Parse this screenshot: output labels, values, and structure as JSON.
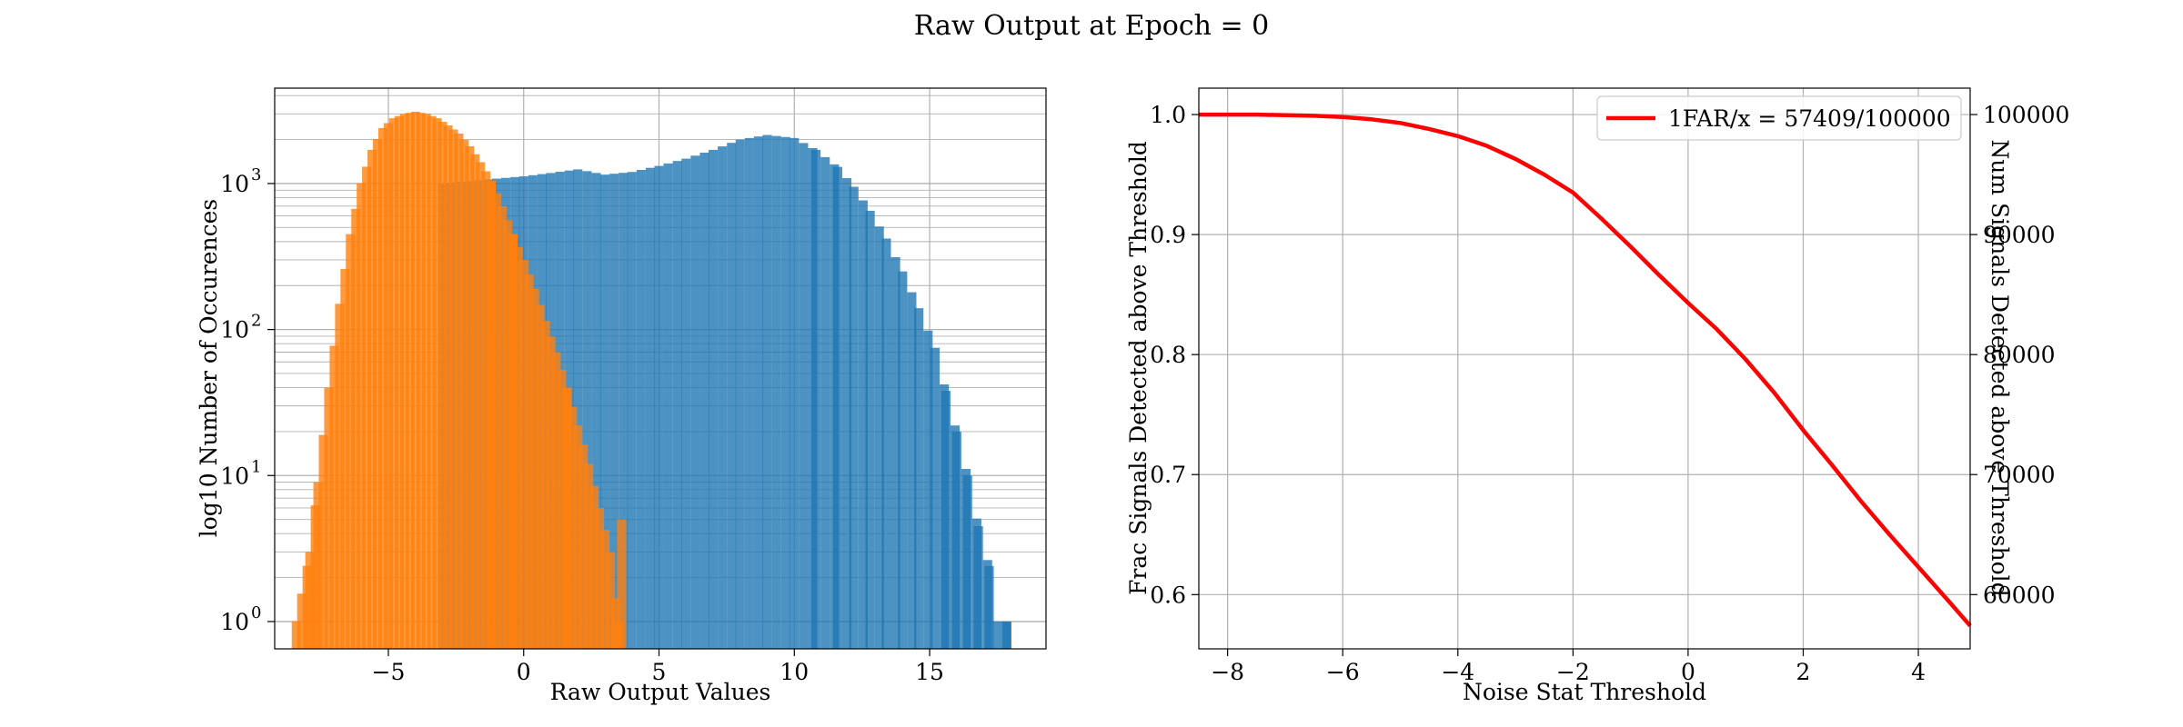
{
  "figure": {
    "suptitle": "Raw Output at Epoch = 0"
  },
  "colors": {
    "signal": "#1f77b4",
    "noise": "#ff7f0e",
    "curve": "#ff0000",
    "grid": "#b0b0b0"
  },
  "chart_data": [
    {
      "type": "histogram",
      "title": "",
      "xlabel": "Raw Output Values",
      "ylabel": "log10 Number of Occurences",
      "yscale": "log",
      "xlim": [
        -9.2,
        19.3
      ],
      "ylim": [
        0.65,
        4500
      ],
      "xticks": [
        -5,
        0,
        5,
        10,
        15
      ],
      "xtick_labels": [
        "−5",
        "0",
        "5",
        "10",
        "15"
      ],
      "yticks": [
        1,
        10,
        100,
        1000
      ],
      "ytick_labels": [
        "10",
        "10",
        "10",
        "10"
      ],
      "ytick_exponents": [
        "0",
        "1",
        "2",
        "3"
      ],
      "grid": true,
      "series": [
        {
          "color_key": "signal",
          "bins": [
            [
              -3.0,
              1000
            ],
            [
              -2.0,
              1040
            ],
            [
              -1.0,
              1080
            ],
            [
              0.0,
              1120
            ],
            [
              1.0,
              1180
            ],
            [
              2.0,
              1250
            ],
            [
              3.0,
              1150
            ],
            [
              4.0,
              1200
            ],
            [
              5.0,
              1320
            ],
            [
              6.0,
              1480
            ],
            [
              7.0,
              1700
            ],
            [
              8.0,
              2000
            ],
            [
              9.0,
              2150
            ],
            [
              10.0,
              2050
            ],
            [
              10.8,
              1700
            ],
            [
              11.6,
              1300
            ],
            [
              12.2,
              950
            ],
            [
              12.8,
              650
            ],
            [
              13.4,
              420
            ],
            [
              14.0,
              250
            ],
            [
              14.6,
              140
            ],
            [
              15.2,
              75
            ],
            [
              15.6,
              38
            ],
            [
              16.0,
              20
            ],
            [
              16.4,
              10
            ],
            [
              16.8,
              4.5
            ],
            [
              17.2,
              2.4
            ],
            [
              17.5,
              1.0
            ],
            [
              17.85,
              1.0
            ]
          ]
        },
        {
          "color_key": "noise",
          "bins": [
            [
              -8.4,
              1.0
            ],
            [
              -7.9,
              3.0
            ],
            [
              -7.6,
              9.0
            ],
            [
              -7.2,
              40
            ],
            [
              -6.8,
              150
            ],
            [
              -6.4,
              450
            ],
            [
              -6.0,
              1000
            ],
            [
              -5.6,
              1700
            ],
            [
              -5.2,
              2400
            ],
            [
              -4.8,
              2800
            ],
            [
              -4.4,
              3000
            ],
            [
              -4.0,
              3100
            ],
            [
              -3.6,
              3000
            ],
            [
              -3.2,
              2800
            ],
            [
              -2.8,
              2500
            ],
            [
              -2.4,
              2200
            ],
            [
              -2.0,
              1800
            ],
            [
              -1.6,
              1400
            ],
            [
              -1.2,
              1050
            ],
            [
              -0.8,
              700
            ],
            [
              -0.4,
              450
            ],
            [
              0.0,
              300
            ],
            [
              0.4,
              190
            ],
            [
              0.8,
              115
            ],
            [
              1.2,
              70
            ],
            [
              1.6,
              40
            ],
            [
              2.0,
              22
            ],
            [
              2.4,
              12
            ],
            [
              2.8,
              6
            ],
            [
              3.2,
              3
            ],
            [
              3.5,
              1.0
            ],
            [
              3.62,
              5.0
            ]
          ]
        },
        {
          "color_key": "overlap",
          "note_visible": false,
          "bins": []
        }
      ]
    },
    {
      "type": "line",
      "title": "",
      "xlabel": "Noise Stat Threshold",
      "ylabel": "Frac Signals Detected above Threshold",
      "ylabel_right": "Num Signals Detected above Threshold",
      "xlim": [
        -8.5,
        4.9
      ],
      "ylim": [
        0.5548,
        1.022
      ],
      "y2lim": [
        55480,
        102200
      ],
      "xticks": [
        -8,
        -6,
        -4,
        -2,
        0,
        2,
        4
      ],
      "xtick_labels": [
        "−8",
        "−6",
        "−4",
        "−2",
        "0",
        "2",
        "4"
      ],
      "yticks": [
        0.6,
        0.7,
        0.8,
        0.9,
        1.0
      ],
      "ytick_labels": [
        "0.6",
        "0.7",
        "0.8",
        "0.9",
        "1.0"
      ],
      "y2ticks": [
        60000,
        70000,
        80000,
        90000,
        100000
      ],
      "y2tick_labels": [
        "60000",
        "70000",
        "80000",
        "90000",
        "100000"
      ],
      "grid": true,
      "legend": "top-right",
      "series": [
        {
          "name": "1FAR/x = 57409/100000",
          "color_key": "curve",
          "x": [
            -8.5,
            -7.5,
            -6.5,
            -6.0,
            -5.5,
            -5.0,
            -4.5,
            -4.0,
            -3.5,
            -3.0,
            -2.5,
            -2.0,
            -1.5,
            -1.0,
            -0.5,
            0.0,
            0.5,
            1.0,
            1.5,
            2.0,
            2.5,
            3.0,
            3.5,
            4.0,
            4.5,
            4.9
          ],
          "y": [
            1.0,
            1.0,
            0.999,
            0.998,
            0.996,
            0.993,
            0.988,
            0.982,
            0.974,
            0.963,
            0.95,
            0.935,
            0.913,
            0.89,
            0.866,
            0.843,
            0.821,
            0.796,
            0.768,
            0.737,
            0.708,
            0.678,
            0.65,
            0.623,
            0.596,
            0.574
          ]
        }
      ]
    }
  ]
}
